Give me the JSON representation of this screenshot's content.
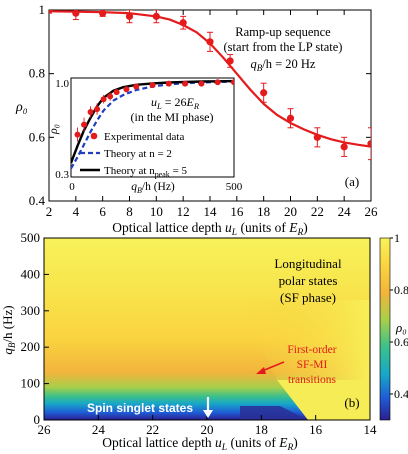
{
  "chart_data": [
    {
      "panel": "(a)",
      "type": "scatter",
      "ylabel": "ρ₀",
      "xlabel_main": "Optical lattice depth ",
      "xlabel_var": "u",
      "xlabel_sub": "L",
      "xlabel_units": " (units of ",
      "xlabel_E": "E",
      "xlabel_Esub": "R",
      "xlabel_close": ")",
      "xlim": [
        2,
        26
      ],
      "ylim": [
        0.4,
        1.0
      ],
      "xticks": [
        2,
        4,
        6,
        8,
        10,
        12,
        14,
        16,
        18,
        20,
        22,
        24,
        26
      ],
      "yticks": [
        0.4,
        0.6,
        0.8,
        1.0
      ],
      "annotation_line1": "Ramp-up sequence",
      "annotation_line2": "(start from the LP state)",
      "annotation_qB": "q",
      "annotation_qB_sub": "B",
      "annotation_qB_rest": "/h = 20 Hz",
      "label": "(a)",
      "series": [
        {
          "kind": "data",
          "color": "#e41a1c",
          "points": [
            {
              "x": 2,
              "y": 1.0,
              "err": 0.01
            },
            {
              "x": 4,
              "y": 0.99,
              "err": 0.02
            },
            {
              "x": 6,
              "y": 0.99,
              "err": 0.01
            },
            {
              "x": 8,
              "y": 0.98,
              "err": 0.02
            },
            {
              "x": 10,
              "y": 0.98,
              "err": 0.02
            },
            {
              "x": 12,
              "y": 0.96,
              "err": 0.02
            },
            {
              "x": 14,
              "y": 0.9,
              "err": 0.03
            },
            {
              "x": 15.5,
              "y": 0.84,
              "err": 0.02
            },
            {
              "x": 18,
              "y": 0.74,
              "err": 0.03
            },
            {
              "x": 20,
              "y": 0.66,
              "err": 0.03
            },
            {
              "x": 22,
              "y": 0.6,
              "err": 0.03
            },
            {
              "x": 24,
              "y": 0.57,
              "err": 0.03
            },
            {
              "x": 26,
              "y": 0.58,
              "err": 0.05
            }
          ]
        },
        {
          "kind": "fit",
          "color": "#e41a1c",
          "x": [
            2,
            4,
            6,
            8,
            10,
            11,
            12,
            13,
            14,
            15,
            16,
            17,
            18,
            19,
            20,
            21,
            22,
            23,
            24,
            25,
            26
          ],
          "y": [
            0.996,
            0.995,
            0.993,
            0.99,
            0.98,
            0.97,
            0.953,
            0.93,
            0.895,
            0.85,
            0.8,
            0.75,
            0.705,
            0.67,
            0.645,
            0.625,
            0.608,
            0.594,
            0.584,
            0.577,
            0.571
          ]
        }
      ],
      "inset": {
        "type": "scatter",
        "ylabel": "ρ₀",
        "xlabel_q": "q",
        "xlabel_sub": "B",
        "xlabel_rest": "/h (Hz)",
        "xtick_labels": [
          "0",
          "500"
        ],
        "ytick_labels": [
          "0.3",
          "1.0"
        ],
        "xlim": [
          0,
          500
        ],
        "ylim": [
          0.3,
          1.0
        ],
        "uL_text_u": "u",
        "uL_text_sub": "L",
        "uL_text_rest": " = 26",
        "uL_text_E": "E",
        "uL_text_Esub": "R",
        "phase_text": "(in the MI phase)",
        "legend": [
          {
            "label": "Experimental data",
            "style": "marker",
            "color": "#e41a1c"
          },
          {
            "label": "Theory at n = 2",
            "style": "dashed",
            "color": "#1f3fbf"
          },
          {
            "label": "Theory at n",
            "sub": "peak",
            "rest": " = 5",
            "style": "solid",
            "color": "#000000"
          }
        ],
        "series": [
          {
            "name": "Experimental data",
            "color": "#e41a1c",
            "points": [
              {
                "x": 20,
                "y": 0.6,
                "err": 0.05
              },
              {
                "x": 40,
                "y": 0.67,
                "err": 0.05
              },
              {
                "x": 60,
                "y": 0.76,
                "err": 0.04
              },
              {
                "x": 80,
                "y": 0.78,
                "err": 0.04
              },
              {
                "x": 100,
                "y": 0.85,
                "err": 0.03
              },
              {
                "x": 120,
                "y": 0.87,
                "err": 0.03
              },
              {
                "x": 140,
                "y": 0.9,
                "err": 0.02
              },
              {
                "x": 170,
                "y": 0.92,
                "err": 0.02
              },
              {
                "x": 200,
                "y": 0.94,
                "err": 0.02
              },
              {
                "x": 250,
                "y": 0.95,
                "err": 0.02
              },
              {
                "x": 300,
                "y": 0.96,
                "err": 0.01
              },
              {
                "x": 350,
                "y": 0.96,
                "err": 0.01
              },
              {
                "x": 400,
                "y": 0.96,
                "err": 0.01
              },
              {
                "x": 450,
                "y": 0.97,
                "err": 0.01
              },
              {
                "x": 500,
                "y": 0.97,
                "err": 0.01
              }
            ]
          },
          {
            "name": "Theory at n = 2",
            "color": "#1f3fbf",
            "x": [
              0,
              20,
              40,
              60,
              80,
              100,
              130,
              160,
              200,
              250,
              300,
              350,
              400,
              450,
              500
            ],
            "y": [
              0.36,
              0.44,
              0.53,
              0.62,
              0.7,
              0.77,
              0.84,
              0.88,
              0.915,
              0.94,
              0.955,
              0.963,
              0.968,
              0.972,
              0.975
            ]
          },
          {
            "name": "Theory at n_peak = 5",
            "color": "#000000",
            "x": [
              0,
              20,
              40,
              60,
              80,
              100,
              130,
              160,
              200,
              250,
              300,
              350,
              400,
              450,
              500
            ],
            "y": [
              0.4,
              0.52,
              0.63,
              0.72,
              0.8,
              0.86,
              0.91,
              0.935,
              0.952,
              0.962,
              0.968,
              0.972,
              0.975,
              0.977,
              0.978
            ]
          }
        ]
      }
    },
    {
      "panel": "(b)",
      "type": "heatmap",
      "ylabel_q": "q",
      "ylabel_sub": "B",
      "ylabel_rest": "/h (Hz)",
      "xlabel_main": "Optical lattice depth ",
      "xlabel_var": "u",
      "xlabel_sub": "L",
      "xlabel_units": " (units of ",
      "xlabel_E": "E",
      "xlabel_Esub": "R",
      "xlabel_close": ")",
      "xlim": [
        26,
        14
      ],
      "ylim": [
        0,
        500
      ],
      "xticks": [
        26,
        24,
        22,
        20,
        18,
        16,
        14
      ],
      "yticks": [
        0,
        100,
        200,
        300,
        400,
        500
      ],
      "colorbar_label": "ρ₀",
      "colorbar_ticks": [
        0.4,
        0.6,
        0.8,
        1.0
      ],
      "colorbar_range": [
        0.3,
        1.0
      ],
      "colormap": [
        "#2c1f8e",
        "#1f5bd6",
        "#17a7c7",
        "#3cc08a",
        "#a7cf4b",
        "#f2b43c",
        "#fad440",
        "#f8f25a"
      ],
      "text_polar_1": "Longitudinal",
      "text_polar_2": "polar states",
      "text_polar_3": "(SF phase)",
      "text_firstorder_1": "First-order",
      "text_firstorder_2": "SF-MI",
      "text_firstorder_3": "transitions",
      "text_firstorder_color": "#e41a1c",
      "text_singlet": "Spin singlet states",
      "label": "(b)"
    }
  ]
}
